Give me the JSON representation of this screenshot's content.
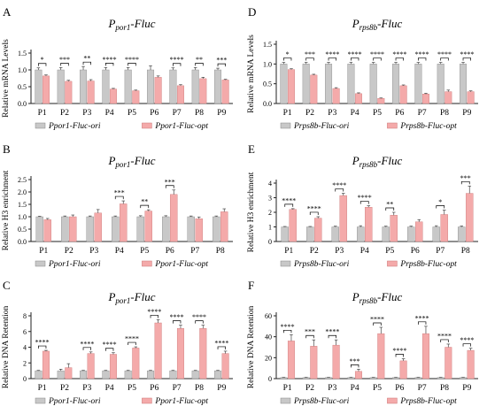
{
  "colors": {
    "ori": "#c8c8c8",
    "opt": "#f4aaaa",
    "axis": "#222222",
    "sig": "#000000"
  },
  "chart_data": [
    {
      "letter": "A",
      "type": "bar",
      "title_main": "P",
      "title_sub": "por1",
      "title_tail": "-Fluc",
      "ylabel": "Relative mRNA Levels",
      "ylim": [
        0,
        1.5
      ],
      "yticks": [
        "0.0",
        "0.5",
        "1.0",
        "1.5"
      ],
      "categories": [
        "P1",
        "P2",
        "P3",
        "P4",
        "P5",
        "P6",
        "P7",
        "P8",
        "P9"
      ],
      "series": [
        {
          "name": "Ppor1-Fluc-ori",
          "values": [
            1.0,
            1.0,
            1.0,
            1.0,
            1.0,
            1.0,
            1.0,
            1.0,
            1.0
          ],
          "errors": [
            0.06,
            0.07,
            0.1,
            0.07,
            0.07,
            0.12,
            0.06,
            0.07,
            0.05
          ]
        },
        {
          "name": "Ppor1-Fluc-opt",
          "values": [
            0.82,
            0.66,
            0.67,
            0.43,
            0.38,
            0.78,
            0.53,
            0.74,
            0.7
          ],
          "errors": [
            0.03,
            0.03,
            0.04,
            0.02,
            0.02,
            0.04,
            0.03,
            0.04,
            0.02
          ]
        }
      ],
      "significance": [
        "*",
        "***",
        "**",
        "****",
        "****",
        "",
        "****",
        "**",
        "***"
      ]
    },
    {
      "letter": "B",
      "type": "bar",
      "title_main": "P",
      "title_sub": "por1",
      "title_tail": "-Fluc",
      "ylabel": "Relative H3 enrichment",
      "ylim": [
        0,
        2.5
      ],
      "yticks": [
        "0.0",
        "0.5",
        "1.0",
        "1.5",
        "2.0",
        "2.5"
      ],
      "categories": [
        "P1",
        "P2",
        "P3",
        "P4",
        "P5",
        "P6",
        "P7",
        "P8"
      ],
      "series": [
        {
          "name": "Ppor1-Fluc-ori",
          "values": [
            1.0,
            1.0,
            1.0,
            1.0,
            1.0,
            1.0,
            1.0,
            1.0
          ],
          "errors": [
            0.02,
            0.03,
            0.03,
            0.03,
            0.04,
            0.04,
            0.03,
            0.03
          ]
        },
        {
          "name": "Ppor1-Fluc-opt",
          "values": [
            0.88,
            1.0,
            1.15,
            1.52,
            1.23,
            1.9,
            0.92,
            1.2
          ],
          "errors": [
            0.05,
            0.07,
            0.14,
            0.12,
            0.05,
            0.18,
            0.07,
            0.12
          ]
        }
      ],
      "significance": [
        "",
        "",
        "",
        "***",
        "**",
        "***",
        "",
        ""
      ]
    },
    {
      "letter": "C",
      "type": "bar",
      "title_main": "P",
      "title_sub": "por1",
      "title_tail": "-Fluc",
      "ylabel": "Relative DNA Retention",
      "ylim": [
        0,
        8
      ],
      "yticks": [
        "0",
        "2",
        "4",
        "6",
        "8"
      ],
      "categories": [
        "P1",
        "P2",
        "P3",
        "P4",
        "P5",
        "P6",
        "P7",
        "P8",
        "P9"
      ],
      "series": [
        {
          "name": "Ppor1-Fluc-ori",
          "values": [
            1.0,
            1.0,
            1.0,
            1.0,
            1.0,
            1.0,
            1.0,
            1.0,
            1.0
          ],
          "errors": [
            0.05,
            0.2,
            0.05,
            0.05,
            0.05,
            0.05,
            0.05,
            0.05,
            0.05
          ]
        },
        {
          "name": "Ppor1-Fluc-opt",
          "values": [
            3.5,
            1.4,
            3.2,
            3.1,
            3.9,
            7.1,
            6.4,
            6.4,
            3.2
          ],
          "errors": [
            0.1,
            0.5,
            0.2,
            0.2,
            0.15,
            0.4,
            0.4,
            0.4,
            0.3
          ]
        }
      ],
      "significance": [
        "****",
        "",
        "****",
        "****",
        "****",
        "****",
        "****",
        "****",
        "****"
      ]
    },
    {
      "letter": "D",
      "type": "bar",
      "title_main": "P",
      "title_sub": "rps8b",
      "title_tail": "-Fluc",
      "ylabel": "Relative mRNA Levels",
      "ylim": [
        0,
        1.5
      ],
      "yticks": [
        "0.0",
        "0.5",
        "1.0",
        "1.5"
      ],
      "categories": [
        "P1",
        "P2",
        "P3",
        "P4",
        "P5",
        "P6",
        "P7",
        "P8",
        "P9"
      ],
      "series": [
        {
          "name": "Prps8b-Fluc-ori",
          "values": [
            1.0,
            1.0,
            1.0,
            1.0,
            1.0,
            1.0,
            1.0,
            1.0,
            1.0
          ],
          "errors": [
            0.04,
            0.04,
            0.04,
            0.04,
            0.04,
            0.04,
            0.04,
            0.04,
            0.04
          ]
        },
        {
          "name": "Prps8b-Fluc-opt",
          "values": [
            0.86,
            0.72,
            0.38,
            0.25,
            0.13,
            0.45,
            0.24,
            0.3,
            0.3
          ],
          "errors": [
            0.02,
            0.02,
            0.02,
            0.02,
            0.01,
            0.02,
            0.02,
            0.04,
            0.02
          ]
        }
      ],
      "significance": [
        "*",
        "***",
        "****",
        "****",
        "****",
        "****",
        "****",
        "****",
        "****"
      ]
    },
    {
      "letter": "E",
      "type": "bar",
      "title_main": "P",
      "title_sub": "rps8b",
      "title_tail": "-Fluc",
      "ylabel": "Relative H3 enrichment",
      "ylim": [
        0,
        4
      ],
      "yticks": [
        "0",
        "1",
        "2",
        "3",
        "4"
      ],
      "categories": [
        "P1",
        "P2",
        "P3",
        "P4",
        "P5",
        "P6",
        "P7",
        "P8"
      ],
      "series": [
        {
          "name": "Prps8b-Fluc-ori",
          "values": [
            1.0,
            1.0,
            1.0,
            1.0,
            1.0,
            1.0,
            1.0,
            1.0
          ],
          "errors": [
            0.03,
            0.03,
            0.05,
            0.08,
            0.05,
            0.05,
            0.08,
            0.06
          ]
        },
        {
          "name": "Prps8b-Fluc-opt",
          "values": [
            2.2,
            1.6,
            3.15,
            2.35,
            1.8,
            1.35,
            1.85,
            3.3
          ],
          "errors": [
            0.05,
            0.1,
            0.15,
            0.1,
            0.2,
            0.15,
            0.3,
            0.5
          ]
        }
      ],
      "significance": [
        "****",
        "****",
        "****",
        "****",
        "**",
        "",
        "*",
        "***"
      ]
    },
    {
      "letter": "F",
      "type": "bar",
      "title_main": "P",
      "title_sub": "rps8b",
      "title_tail": "-Fluc",
      "ylabel": "Relative DNA Retention",
      "ylim": [
        0,
        60
      ],
      "yticks": [
        "0",
        "20",
        "40",
        "60"
      ],
      "categories": [
        "P1",
        "P2",
        "P3",
        "P4",
        "P5",
        "P6",
        "P7",
        "P8",
        "P9"
      ],
      "series": [
        {
          "name": "Prps8b-Fluc-ori",
          "values": [
            1.0,
            1.0,
            1.0,
            1.0,
            1.0,
            1.0,
            1.0,
            1.0,
            1.0
          ],
          "errors": [
            0.2,
            0.2,
            0.2,
            0.2,
            0.2,
            0.2,
            0.2,
            0.2,
            0.2
          ]
        },
        {
          "name": "Prps8b-Fluc-opt",
          "values": [
            36,
            31,
            32,
            7,
            43,
            17,
            43,
            30,
            27
          ],
          "errors": [
            6,
            6,
            5,
            2,
            6,
            2,
            7,
            3,
            2
          ]
        }
      ],
      "significance": [
        "****",
        "***",
        "****",
        "***",
        "****",
        "****",
        "****",
        "****",
        "****"
      ]
    }
  ]
}
